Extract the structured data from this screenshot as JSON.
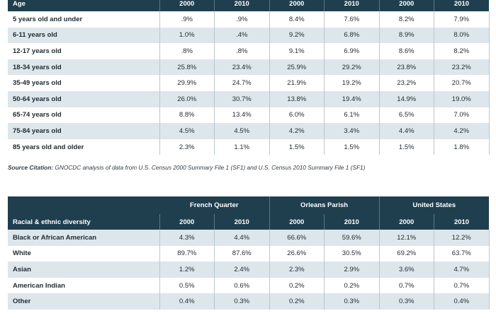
{
  "age_table": {
    "header_label": "Age",
    "years": [
      "2000",
      "2010",
      "2000",
      "2010",
      "2000",
      "2010"
    ],
    "rows": [
      {
        "label": "5 years old and under",
        "values": [
          ".9%",
          ".9%",
          "8.4%",
          "7.6%",
          "8.2%",
          "7.9%"
        ]
      },
      {
        "label": "6-11 years old",
        "values": [
          "1.0%",
          ".4%",
          "9.2%",
          "6.8%",
          "8.9%",
          "8.0%"
        ]
      },
      {
        "label": "12-17 years old",
        "values": [
          ".8%",
          ".8%",
          "9.1%",
          "6.9%",
          "8.6%",
          "8.2%"
        ]
      },
      {
        "label": "18-34 years old",
        "values": [
          "25.8%",
          "23.4%",
          "25.9%",
          "29.2%",
          "23.8%",
          "23.2%"
        ]
      },
      {
        "label": "35-49 years old",
        "values": [
          "29.9%",
          "24.7%",
          "21.9%",
          "19.2%",
          "23.2%",
          "20.7%"
        ]
      },
      {
        "label": "50-64 years old",
        "values": [
          "26.0%",
          "30.7%",
          "13.8%",
          "19.4%",
          "14.9%",
          "19.0%"
        ]
      },
      {
        "label": "65-74 years old",
        "values": [
          "8.8%",
          "13.4%",
          "6.0%",
          "6.1%",
          "6.5%",
          "7.0%"
        ]
      },
      {
        "label": "75-84 years old",
        "values": [
          "4.5%",
          "4.5%",
          "4.2%",
          "3.4%",
          "4.4%",
          "4.2%"
        ]
      },
      {
        "label": "85 years old and older",
        "values": [
          "2.3%",
          "1.1%",
          "1.5%",
          "1.5%",
          "1.5%",
          "1.8%"
        ]
      }
    ]
  },
  "citation": {
    "label": "Source Citation:",
    "text": " GNOCDC analysis of data from U.S. Census 2000 Summary File 1 (SF1) and U.S. Census 2010 Summary File 1 (SF1)"
  },
  "race_table": {
    "groups": [
      "French Quarter",
      "Orleans Parish",
      "United States"
    ],
    "header_label": "Racial & ethnic diversity",
    "years": [
      "2000",
      "2010",
      "2000",
      "2010",
      "2000",
      "2010"
    ],
    "rows": [
      {
        "label": "Black or African American",
        "values": [
          "4.3%",
          "4.4%",
          "66.6%",
          "59.6%",
          "12.1%",
          "12.2%"
        ]
      },
      {
        "label": "White",
        "values": [
          "89.7%",
          "87.6%",
          "26.6%",
          "30.5%",
          "69.2%",
          "63.7%"
        ]
      },
      {
        "label": "Asian",
        "values": [
          "1.2%",
          "2.4%",
          "2.3%",
          "2.9%",
          "3.6%",
          "4.7%"
        ]
      },
      {
        "label": "American Indian",
        "values": [
          "0.5%",
          "0.6%",
          "0.2%",
          "0.2%",
          "0.7%",
          "0.7%"
        ]
      },
      {
        "label": "Other",
        "values": [
          "0.4%",
          "0.3%",
          "0.2%",
          "0.3%",
          "0.3%",
          "0.4%"
        ]
      }
    ]
  }
}
